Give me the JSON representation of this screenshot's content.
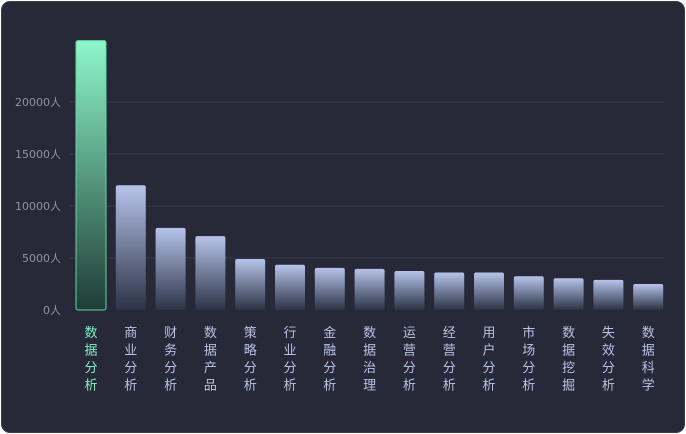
{
  "chart_data": {
    "type": "bar",
    "title": "",
    "xlabel": "",
    "ylabel": "",
    "ylim": [
      0,
      26000
    ],
    "grid": true,
    "yticks": [
      {
        "value": 0,
        "label": "0人"
      },
      {
        "value": 5000,
        "label": "5000人"
      },
      {
        "value": 10000,
        "label": "10000人"
      },
      {
        "value": 15000,
        "label": "15000人"
      },
      {
        "value": 20000,
        "label": "20000人"
      }
    ],
    "categories": [
      "数据分析",
      "商业分析",
      "财务分析",
      "数据产品",
      "策略分析",
      "行业分析",
      "金融分析",
      "数据治理",
      "运营分析",
      "经营分析",
      "用户分析",
      "市场分析",
      "数据挖掘",
      "失效分析",
      "数据科学"
    ],
    "values": [
      25900,
      12000,
      7900,
      7100,
      4900,
      4350,
      4050,
      3950,
      3750,
      3600,
      3600,
      3250,
      3050,
      2900,
      2500
    ],
    "highlight_index": 0,
    "colors": {
      "background": "#272838",
      "grid": "#3a3c50",
      "bar_top": "#b6c4ea",
      "bar_bottom": "#2c3346",
      "highlight_top": "#8ef7c9",
      "highlight_bottom": "#1f3d37",
      "label": "#b9c2e4",
      "highlight_label": "#7ff2c4",
      "tick": "#8e93a8"
    }
  }
}
